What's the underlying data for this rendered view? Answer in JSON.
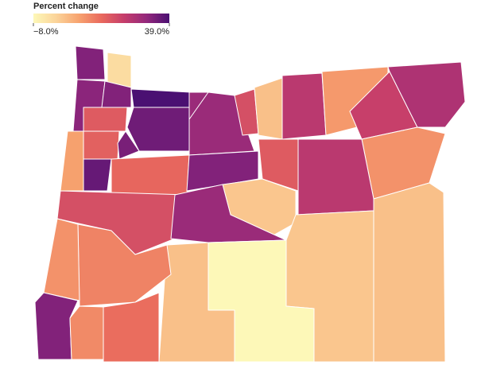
{
  "chart_data": {
    "type": "choropleth",
    "legend_title": "Percent change",
    "clim": [
      -8,
      39
    ],
    "colorbar_ticks": [
      {
        "value": -8,
        "label": "−8.0%"
      },
      {
        "value": 39,
        "label": "39.0%"
      }
    ],
    "colors": [
      "#fdf8b8",
      "#fbd49a",
      "#f7a36f",
      "#e9695d",
      "#c53d6b",
      "#93287c",
      "#4a1072"
    ],
    "values": [
      33,
      -2,
      32,
      33,
      39,
      35,
      18,
      17,
      8,
      34,
      36,
      16,
      20,
      30,
      30,
      20,
      33,
      3,
      25,
      9,
      23,
      27,
      10,
      18,
      25,
      2,
      30,
      3,
      2,
      -8,
      3,
      12,
      10,
      33,
      11,
      15
    ]
  }
}
